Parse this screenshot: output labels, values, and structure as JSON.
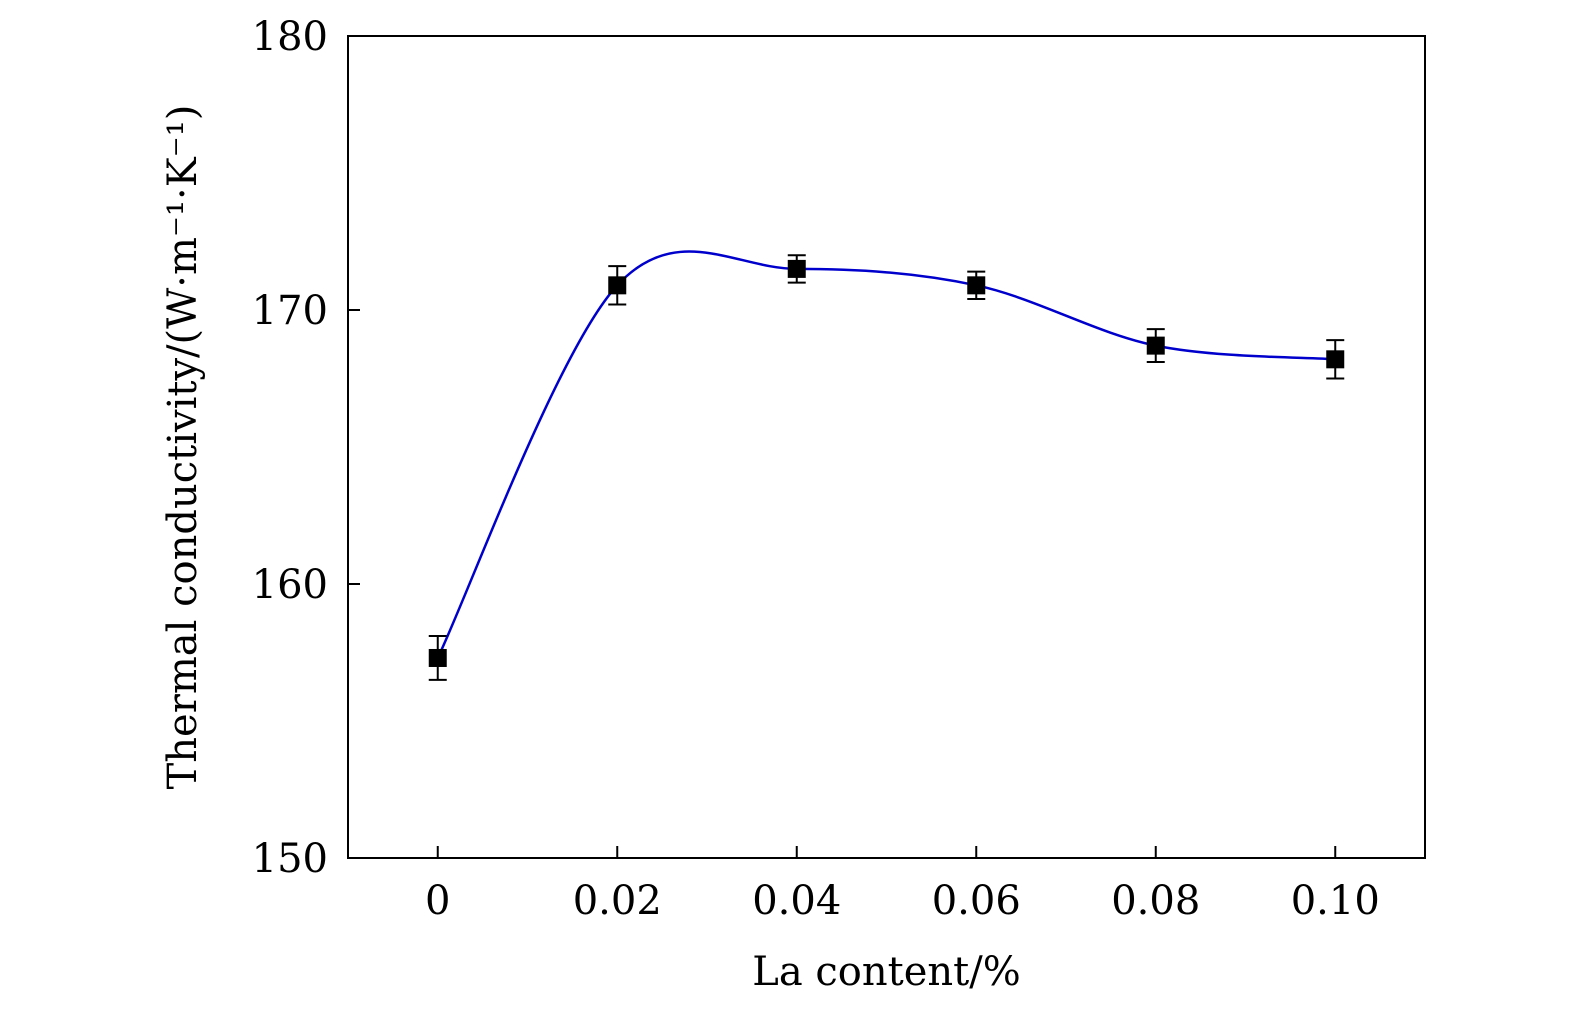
{
  "chart_data": {
    "type": "line",
    "title": "",
    "xlabel": "La content/%",
    "ylabel": "Thermal conductivity/(W·m⁻¹·K⁻¹)",
    "xlim": [
      -0.01,
      0.11
    ],
    "ylim": [
      150,
      180
    ],
    "x_ticks": [
      0,
      0.02,
      0.04,
      0.06,
      0.08,
      0.1
    ],
    "x_tick_labels": [
      "0",
      "0.02",
      "0.04",
      "0.06",
      "0.08",
      "0.10"
    ],
    "y_ticks": [
      150,
      160,
      170,
      180
    ],
    "y_tick_labels": [
      "150",
      "160",
      "170",
      "180"
    ],
    "grid": false,
    "series": [
      {
        "x": [
          0,
          0.02,
          0.04,
          0.06,
          0.08,
          0.1
        ],
        "y": [
          157.3,
          170.9,
          171.5,
          170.9,
          168.7,
          168.2
        ],
        "error": [
          0.8,
          0.7,
          0.5,
          0.5,
          0.6,
          0.7
        ],
        "marker": "square",
        "marker_color": "#000000",
        "line_color": "#0000cc",
        "line_style": "smooth"
      }
    ]
  }
}
